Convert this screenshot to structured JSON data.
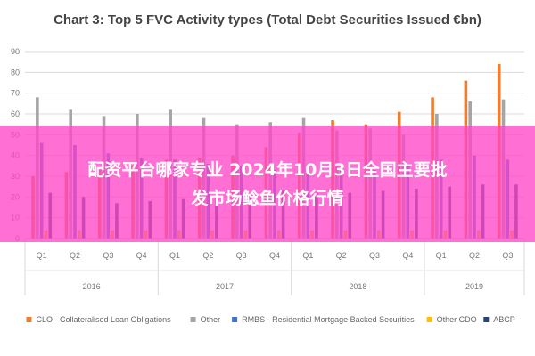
{
  "chart_data": {
    "type": "bar",
    "title": "Chart 3: Top 5 FVC Activity types (Total Debt Securities Issued €bn)",
    "ylim": [
      0,
      90
    ],
    "yticks": [
      0,
      10,
      20,
      30,
      40,
      50,
      60,
      70,
      80,
      90
    ],
    "grid": true,
    "legend_position": "bottom",
    "categories": [
      "Q1",
      "Q2",
      "Q3",
      "Q4",
      "Q1",
      "Q2",
      "Q3",
      "Q4",
      "Q1",
      "Q2",
      "Q3",
      "Q4",
      "Q1",
      "Q2",
      "Q3"
    ],
    "years": [
      {
        "label": "2016",
        "count": 4
      },
      {
        "label": "2017",
        "count": 4
      },
      {
        "label": "2018",
        "count": 4
      },
      {
        "label": "2019",
        "count": 3
      }
    ],
    "series": [
      {
        "name": "CLO - Collateralised Loan Obligations",
        "color": "#ED7D31",
        "values": [
          30,
          32,
          33,
          35,
          38,
          39,
          40,
          44,
          51,
          57,
          55,
          61,
          68,
          76,
          84
        ]
      },
      {
        "name": "Other",
        "color": "#A5A5A5",
        "values": [
          68,
          62,
          59,
          60,
          62,
          58,
          55,
          56,
          58,
          52,
          53,
          50,
          60,
          66,
          67
        ]
      },
      {
        "name": "RMBS - Residential Mortgage Backed Securities",
        "color": "#4472C4",
        "values": [
          46,
          45,
          41,
          39,
          38,
          36,
          35,
          33,
          35,
          34,
          33,
          35,
          38,
          40,
          38
        ]
      },
      {
        "name": "Other CDO",
        "color": "#FFC000",
        "values": [
          4,
          4,
          4,
          4,
          4,
          4,
          4,
          4,
          4,
          4,
          4,
          4,
          4,
          4,
          4
        ]
      },
      {
        "name": "ABCP",
        "color": "#264478",
        "values": [
          22,
          20,
          17,
          18,
          19,
          20,
          21,
          23,
          22,
          22,
          23,
          24,
          25,
          26,
          26
        ]
      }
    ]
  },
  "overlay": {
    "line1": "配资平台哪家专业 2024年10月3日全国主要批",
    "line2": "发市场鲶鱼价格行情"
  }
}
